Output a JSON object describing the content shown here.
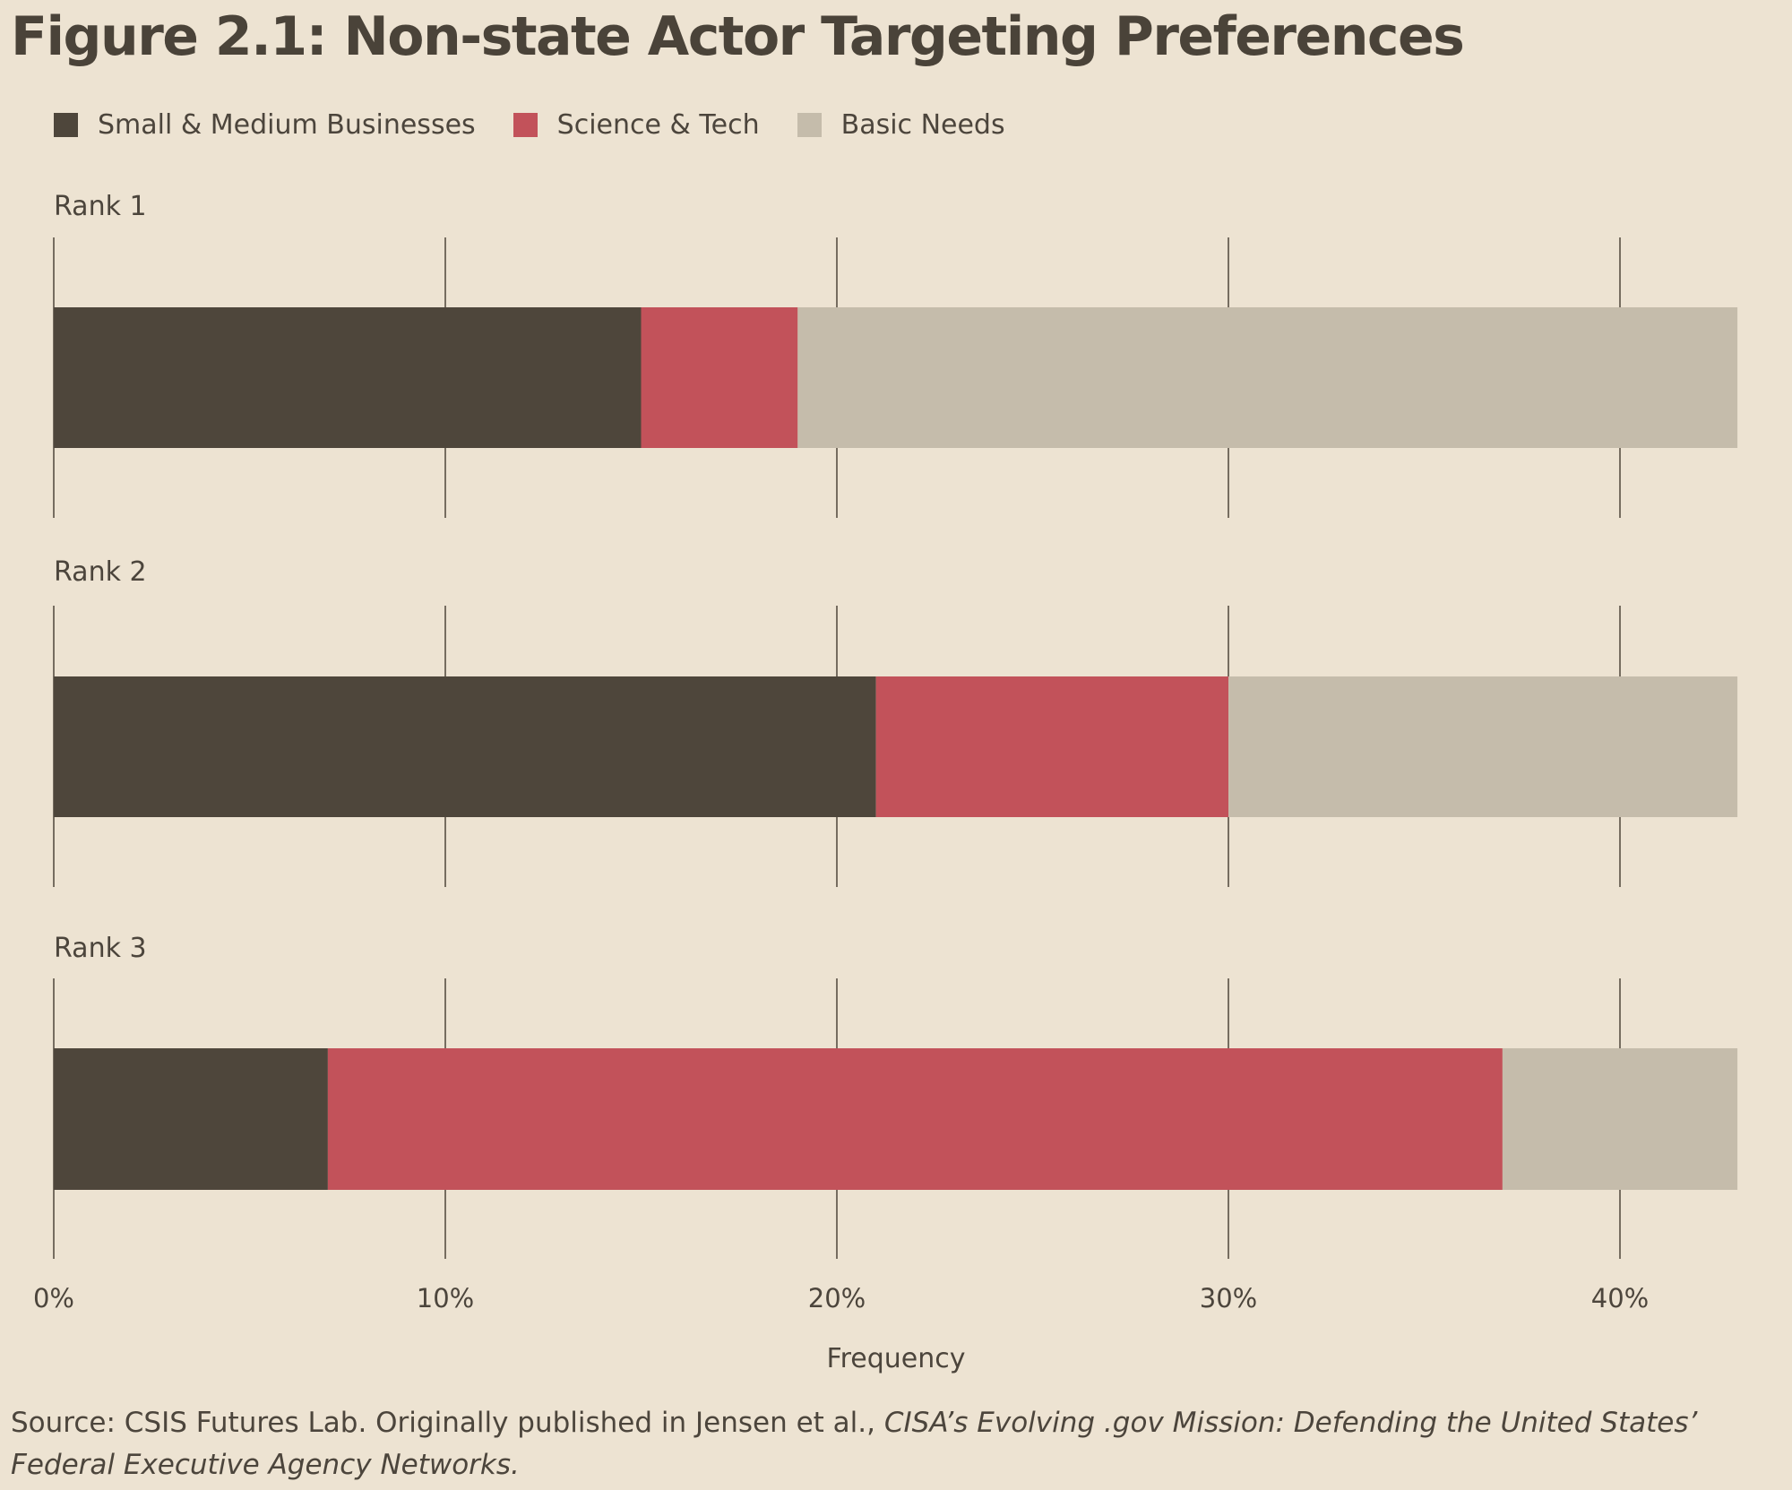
{
  "chart_data": {
    "type": "bar",
    "orientation": "horizontal",
    "stacked": true,
    "title": "Figure 2.1: Non-state Actor Targeting Preferences",
    "xlabel": "Frequency",
    "ylabel": "",
    "xlim": [
      0,
      43
    ],
    "xticks": [
      0,
      10,
      20,
      30,
      40
    ],
    "tick_labels": [
      "0%",
      "10%",
      "20%",
      "30%",
      "40%"
    ],
    "grid": true,
    "legend_position": "top-left",
    "categories": [
      "Rank 1",
      "Rank 2",
      "Rank 3"
    ],
    "series": [
      {
        "name": "Small & Medium Businesses",
        "color": "#4e463b",
        "values": [
          15,
          21,
          7
        ]
      },
      {
        "name": "Science & Tech",
        "color": "#c2525a",
        "values": [
          4,
          9,
          30
        ]
      },
      {
        "name": "Basic Needs",
        "color": "#c5bcab",
        "values": [
          24,
          13,
          6
        ]
      }
    ]
  },
  "source": {
    "prefix": "Source: CSIS Futures Lab. Originally published in Jensen et al., ",
    "publication": "CISA’s Evolving .gov Mission: Defending the United States’ Federal Executive Agency Networks."
  }
}
